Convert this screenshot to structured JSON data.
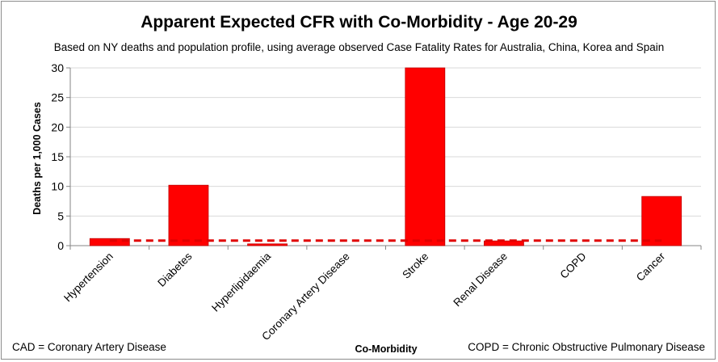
{
  "chart_data": {
    "type": "bar",
    "title": "Apparent Expected CFR with Co-Morbidity - Age 20-29",
    "subtitle": "Based on NY deaths and population profile, using average observed Case Fatality Rates for Australia, China, Korea and Spain",
    "xlabel": "Co-Morbidity",
    "ylabel": "Deaths per 1,000 Cases",
    "ylim": [
      0,
      30
    ],
    "yticks": [
      0,
      5,
      10,
      15,
      20,
      25,
      30
    ],
    "categories": [
      "Hypertension",
      "Diabetes",
      "Hyperlipidaemia",
      "Coronary Artery Disease",
      "Stroke",
      "Renal Disease",
      "COPD",
      "Cancer"
    ],
    "values": [
      1.2,
      10.2,
      0.3,
      0,
      30,
      0.8,
      0,
      8.3
    ],
    "reference_line": {
      "value": 0.85,
      "style": "dashed",
      "color": "#e00000"
    },
    "bar_color": "#ff0000",
    "grid": true,
    "legend": "none"
  },
  "notes": {
    "left": "CAD = Coronary Artery Disease",
    "right": "COPD = Chronic Obstructive Pulmonary Disease"
  }
}
